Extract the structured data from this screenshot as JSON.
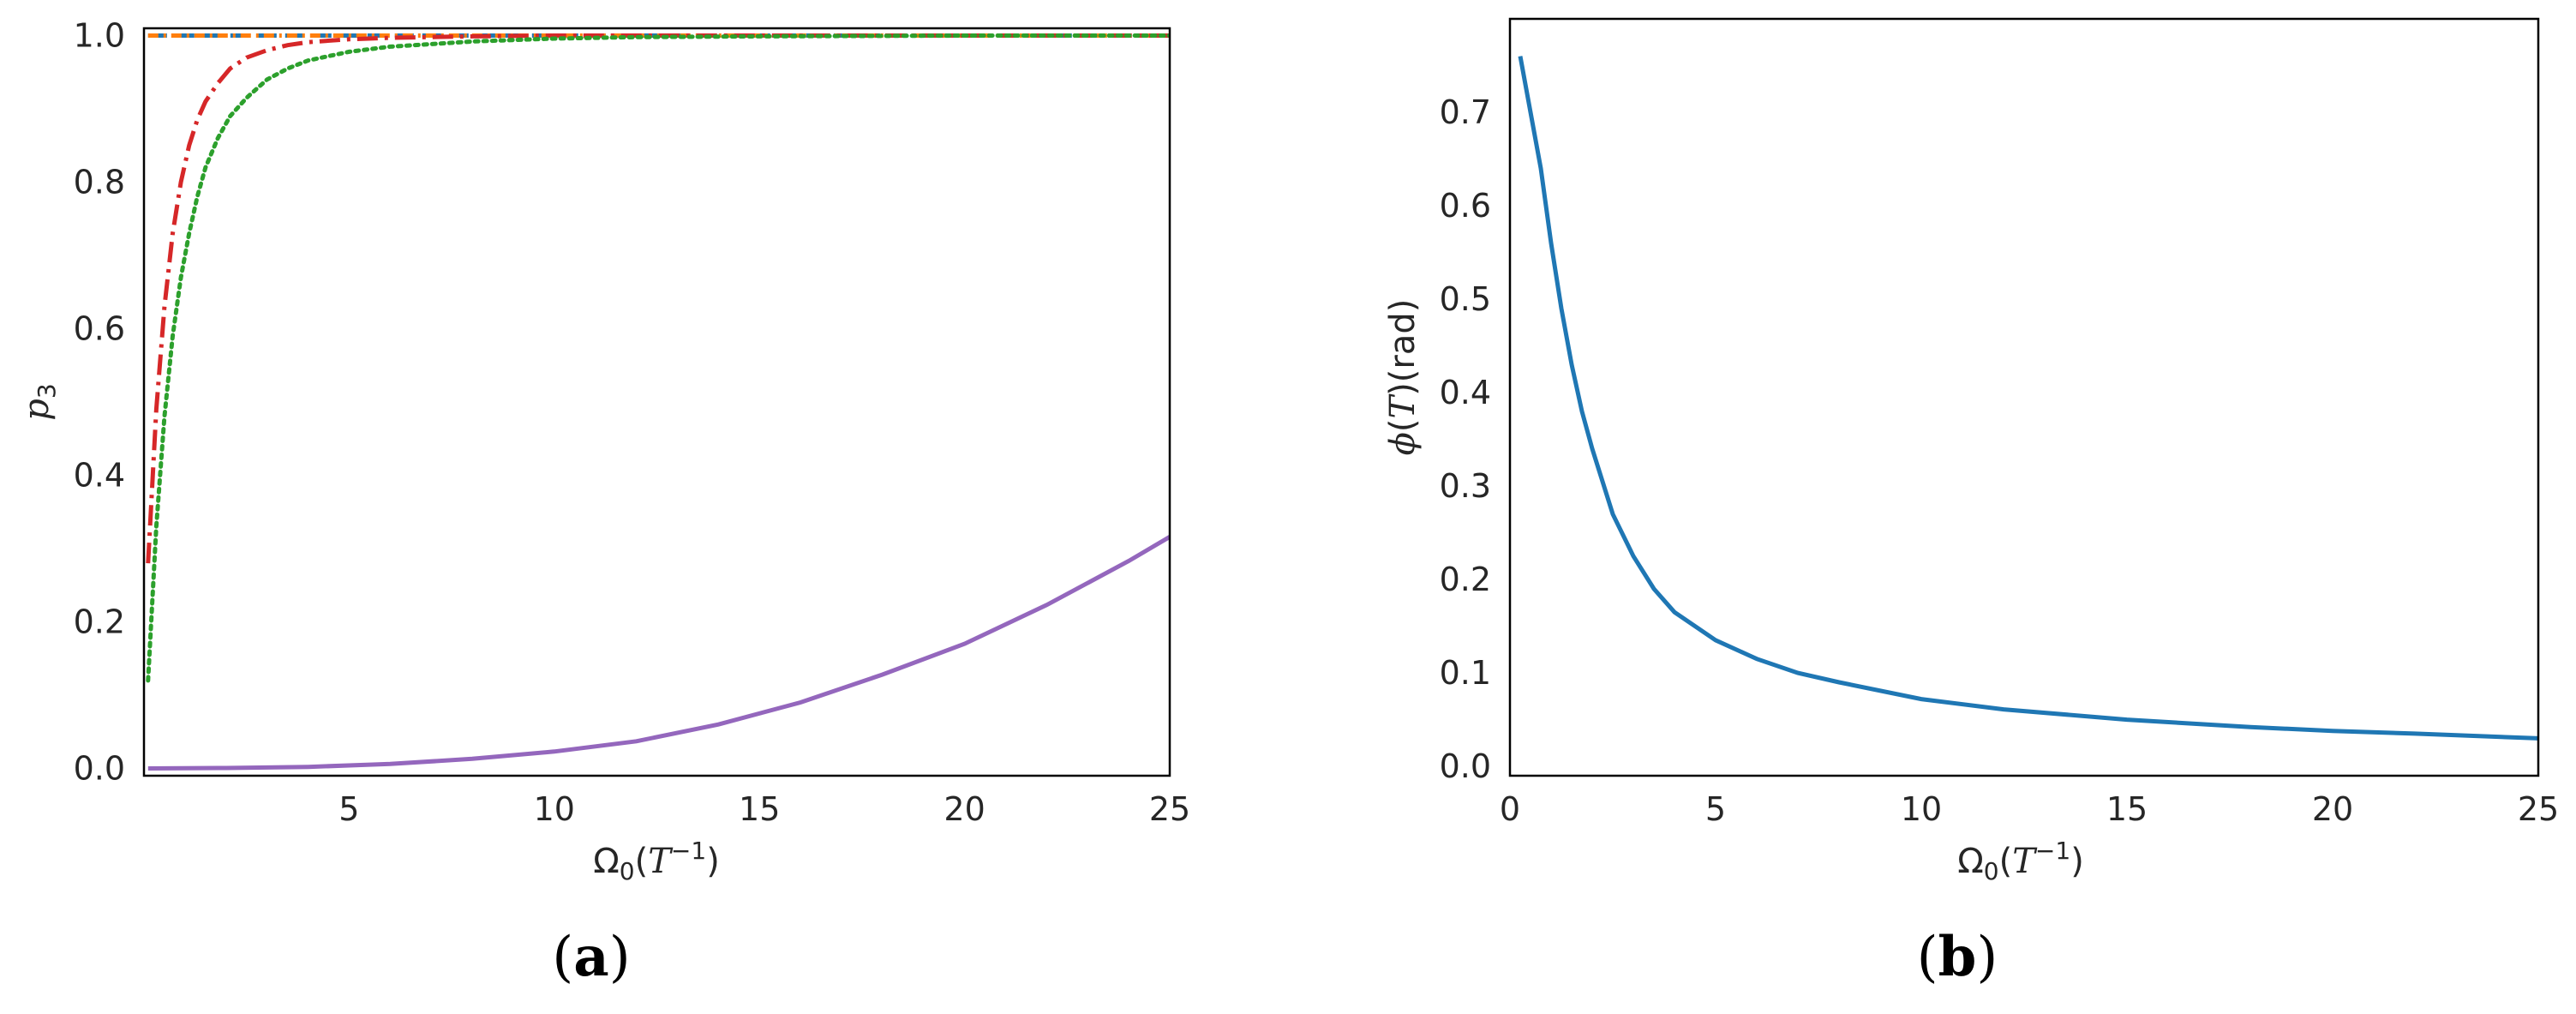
{
  "chart_data": [
    {
      "type": "line",
      "panel_caption": {
        "open": "(",
        "letter": "a",
        "close": ")"
      },
      "xlabel": {
        "base": "Ω",
        "sub": "0",
        "open": "(",
        "var": "T",
        "sup": "−1",
        "close": ")"
      },
      "ylabel": {
        "var": "p",
        "sub": "3"
      },
      "xlim": [
        0,
        25
      ],
      "ylim": [
        -0.01,
        1.01
      ],
      "xticks": [
        5,
        10,
        15,
        20,
        25
      ],
      "xtick_labels": [
        "5",
        "10",
        "15",
        "20",
        "25"
      ],
      "yticks": [
        0.0,
        0.2,
        0.4,
        0.6,
        0.8,
        1.0
      ],
      "ytick_labels": [
        "0.0",
        "0.2",
        "0.4",
        "0.6",
        "0.8",
        "1.0"
      ],
      "grid": false,
      "legend": "none",
      "series": [
        {
          "style": "dashed",
          "color": "#1f77b4",
          "x": [
            0.1,
            25
          ],
          "y": [
            1.0,
            1.0
          ]
        },
        {
          "style": "dashdot-short",
          "color": "#ff7f0e",
          "x": [
            0.1,
            25
          ],
          "y": [
            1.0,
            1.0
          ]
        },
        {
          "style": "dashdot",
          "color": "#d62728",
          "x": [
            0.1,
            0.3,
            0.5,
            0.7,
            0.9,
            1.1,
            1.3,
            1.5,
            1.8,
            2.1,
            2.5,
            3.0,
            3.5,
            4.0,
            5.0,
            6.0,
            8.0,
            10.0,
            15.0,
            20.0,
            25.0
          ],
          "y": [
            0.28,
            0.49,
            0.63,
            0.73,
            0.8,
            0.85,
            0.885,
            0.91,
            0.935,
            0.955,
            0.97,
            0.98,
            0.987,
            0.991,
            0.995,
            0.997,
            0.999,
            1.0,
            1.0,
            1.0,
            1.0
          ]
        },
        {
          "style": "dotted",
          "color": "#2ca02c",
          "x": [
            0.1,
            0.3,
            0.5,
            0.7,
            0.9,
            1.1,
            1.3,
            1.5,
            1.8,
            2.1,
            2.5,
            3.0,
            3.5,
            4.0,
            5.0,
            6.0,
            8.0,
            10.0,
            12.0,
            15.0,
            20.0,
            25.0
          ],
          "y": [
            0.12,
            0.33,
            0.48,
            0.59,
            0.67,
            0.73,
            0.78,
            0.82,
            0.86,
            0.89,
            0.915,
            0.94,
            0.955,
            0.966,
            0.978,
            0.985,
            0.992,
            0.996,
            0.998,
            0.999,
            1.0,
            1.0
          ]
        },
        {
          "style": "solid",
          "color": "#9467bd",
          "x": [
            0.1,
            2,
            4,
            6,
            8,
            10,
            12,
            14,
            16,
            18,
            20,
            22,
            24,
            25
          ],
          "y": [
            0.0,
            0.0005,
            0.002,
            0.006,
            0.013,
            0.023,
            0.037,
            0.06,
            0.09,
            0.128,
            0.17,
            0.223,
            0.283,
            0.316
          ]
        }
      ]
    },
    {
      "type": "line",
      "panel_caption": {
        "open": "(",
        "letter": "b",
        "close": ")"
      },
      "xlabel": {
        "base": "Ω",
        "sub": "0",
        "open": "(",
        "var": "T",
        "sup": "−1",
        "close": ")"
      },
      "ylabel": {
        "var1": "ϕ",
        "open1": "(",
        "var2": "T",
        "close1": ")",
        "unit": "(rad)"
      },
      "xlim": [
        0,
        25
      ],
      "ylim": [
        -0.01,
        0.8
      ],
      "xticks": [
        0,
        5,
        10,
        15,
        20,
        25
      ],
      "xtick_labels": [
        "0",
        "5",
        "10",
        "15",
        "20",
        "25"
      ],
      "yticks": [
        0.0,
        0.1,
        0.2,
        0.3,
        0.4,
        0.5,
        0.6,
        0.7
      ],
      "ytick_labels": [
        "0.0",
        "0.1",
        "0.2",
        "0.3",
        "0.4",
        "0.5",
        "0.6",
        "0.7"
      ],
      "grid": false,
      "legend": "none",
      "series": [
        {
          "style": "solid",
          "color": "#1f77b4",
          "x": [
            0.25,
            0.5,
            0.75,
            1.0,
            1.25,
            1.5,
            1.75,
            2.0,
            2.5,
            3.0,
            3.5,
            4.0,
            5.0,
            6.0,
            7.0,
            8.0,
            10.0,
            12.0,
            15.0,
            18.0,
            20.0,
            22.0,
            25.0
          ],
          "y": [
            0.76,
            0.7,
            0.64,
            0.56,
            0.49,
            0.43,
            0.38,
            0.34,
            0.27,
            0.225,
            0.19,
            0.165,
            0.135,
            0.115,
            0.1,
            0.09,
            0.072,
            0.061,
            0.05,
            0.042,
            0.038,
            0.035,
            0.03
          ]
        }
      ]
    }
  ],
  "colors": {
    "blue": "#1f77b4",
    "orange": "#ff7f0e",
    "red": "#d62728",
    "green": "#2ca02c",
    "purple": "#9467bd",
    "axis": "#262626"
  }
}
